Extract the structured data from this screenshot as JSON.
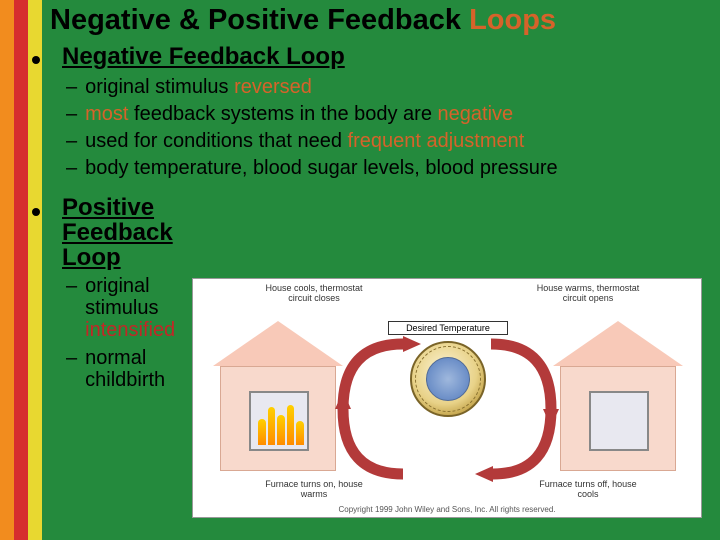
{
  "stripes": [
    "#f28c1e",
    "#d62e2e",
    "#e8d830"
  ],
  "title_plain": "Negative & Positive Feedback ",
  "title_hl": "Loops",
  "negative": {
    "heading": "Negative Feedback Loop",
    "items": [
      {
        "pre": "original stimulus ",
        "hl": "reversed",
        "post": "",
        "cls": "hl-o"
      },
      {
        "pre": "",
        "hl": "most",
        "post": " feedback systems in the body are ",
        "hl2": "negative",
        "cls": "hl-o",
        "cls2": "hl-o"
      },
      {
        "pre": "used for conditions that need ",
        "hl": "frequent adjustment",
        "post": "",
        "cls": "hl-o"
      },
      {
        "pre": "body temperature, blood sugar levels, blood pressure",
        "hl": "",
        "post": "",
        "cls": ""
      }
    ]
  },
  "positive": {
    "heading": "Positive Feedback Loop",
    "items": [
      {
        "pre": "original stimulus ",
        "hl": "intensified",
        "cls": "hl-r"
      },
      {
        "pre": "normal childbirth",
        "hl": "",
        "cls": ""
      }
    ]
  },
  "diagram": {
    "top_left": "House cools,\nthermostat circuit\ncloses",
    "top_right": "House warms,\nthermostat circuit\nopens",
    "center": "Desired Temperature",
    "bottom_left": "Furnace turns on,\nhouse warms",
    "bottom_right": "Furnace turns off,\nhouse cools",
    "copyright": "Copyright 1999 John Wiley and Sons, Inc. All rights reserved.",
    "arrow_color": "#b33a3a",
    "house_fill": "#f8d9cc",
    "roof_fill": "#f8c9b8"
  }
}
